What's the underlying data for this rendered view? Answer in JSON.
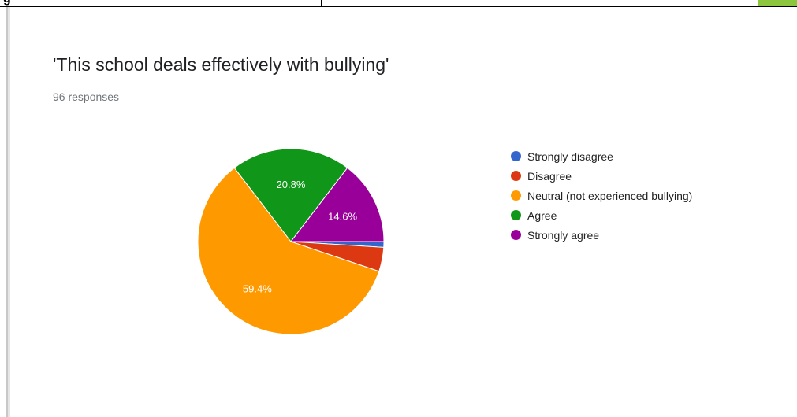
{
  "chart_data": {
    "type": "pie",
    "title": "'This school deals effectively with bullying'",
    "subtitle": "96 responses",
    "slices": [
      {
        "label": "Strongly disagree",
        "value": 1.0,
        "color": "#3366cc",
        "data_label": ""
      },
      {
        "label": "Disagree",
        "value": 4.2,
        "color": "#dc3912",
        "data_label": ""
      },
      {
        "label": "Neutral (not experienced bullying)",
        "value": 59.4,
        "color": "#ff9900",
        "data_label": "59.4%"
      },
      {
        "label": "Agree",
        "value": 20.8,
        "color": "#109618",
        "data_label": "20.8%"
      },
      {
        "label": "Strongly agree",
        "value": 14.6,
        "color": "#990099",
        "data_label": "14.6%"
      }
    ],
    "start_angle_deg": 90,
    "direction": "clockwise",
    "legend_position": "right"
  },
  "page": {
    "top_strip_glyph": "g"
  }
}
